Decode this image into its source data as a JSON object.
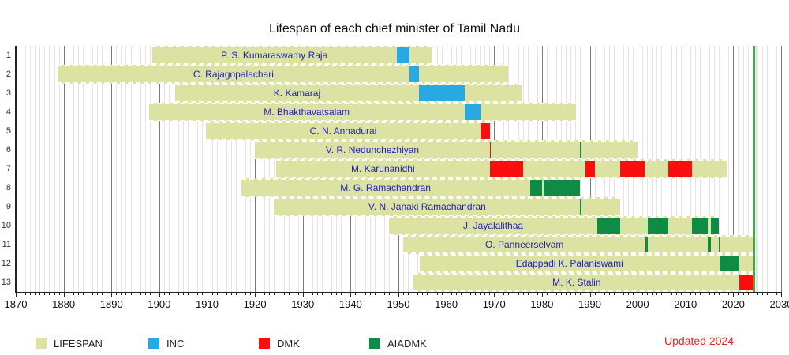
{
  "note": "Updated 2024",
  "chart_data": {
    "type": "bar",
    "variant": "lifespan-timeline",
    "title": "Lifespan of each chief minister of Tamil Nadu",
    "xlabel": "",
    "ylabel": "",
    "x_min": 1870,
    "x_max": 2030,
    "x_ticks": [
      1870,
      1880,
      1890,
      1900,
      1910,
      1920,
      1930,
      1940,
      1950,
      1960,
      1970,
      1980,
      1990,
      2000,
      2010,
      2020,
      2030
    ],
    "grid": "on",
    "now_line": 2024.2,
    "colors": {
      "LIFESPAN": "#dce2a2",
      "INC": "#29a9e1",
      "DMK": "#f90d0d",
      "AIADMK": "#0e8c46",
      "now": "#2db82d",
      "name_text": "#2222bb"
    },
    "legend": [
      {
        "party": "LIFESPAN",
        "label": "LIFESPAN"
      },
      {
        "party": "INC",
        "label": "INC"
      },
      {
        "party": "DMK",
        "label": "DMK"
      },
      {
        "party": "AIADMK",
        "label": "AIADMK"
      }
    ],
    "rows": [
      {
        "no": 1,
        "name": "P. S. Kumaraswamy Raja",
        "born": 1898.5,
        "died": 1957.0,
        "terms": [
          {
            "party": "INC",
            "start": 1949.6,
            "end": 1952.3
          }
        ]
      },
      {
        "no": 2,
        "name": "C. Rajagopalachari",
        "born": 1878.7,
        "died": 1972.9,
        "terms": [
          {
            "party": "INC",
            "start": 1952.3,
            "end": 1954.3
          }
        ]
      },
      {
        "no": 3,
        "name": "K. Kamaraj",
        "born": 1903.3,
        "died": 1975.8,
        "terms": [
          {
            "party": "INC",
            "start": 1954.3,
            "end": 1963.8
          }
        ]
      },
      {
        "no": 4,
        "name": "M. Bhakthavatsalam",
        "born": 1897.8,
        "died": 1987.1,
        "terms": [
          {
            "party": "INC",
            "start": 1963.8,
            "end": 1967.2
          }
        ]
      },
      {
        "no": 5,
        "name": "C. N. Annadurai",
        "born": 1909.7,
        "died": 1969.1,
        "terms": [
          {
            "party": "DMK",
            "start": 1967.2,
            "end": 1969.1
          }
        ]
      },
      {
        "no": 6,
        "name": "V. R. Nedunchezhiyan",
        "born": 1920.0,
        "died": 2000.0,
        "terms": [
          {
            "party": "DMK",
            "start": 1969.1,
            "end": 1969.25
          },
          {
            "party": "AIADMK",
            "start": 1987.98,
            "end": 1988.05
          }
        ]
      },
      {
        "no": 7,
        "name": "M. Karunanidhi",
        "born": 1924.4,
        "died": 2018.6,
        "terms": [
          {
            "party": "DMK",
            "start": 1969.1,
            "end": 1976.1
          },
          {
            "party": "DMK",
            "start": 1989.1,
            "end": 1991.1
          },
          {
            "party": "DMK",
            "start": 1996.4,
            "end": 2001.4
          },
          {
            "party": "DMK",
            "start": 2006.4,
            "end": 2011.4
          }
        ]
      },
      {
        "no": 8,
        "name": "M. G. Ramachandran",
        "born": 1917.1,
        "died": 1988.0,
        "terms": [
          {
            "party": "AIADMK",
            "start": 1977.5,
            "end": 1980.1
          },
          {
            "party": "AIADMK",
            "start": 1980.4,
            "end": 1988.0
          }
        ]
      },
      {
        "no": 9,
        "name": "V. N. Janaki Ramachandran",
        "born": 1924.0,
        "died": 1996.4,
        "terms": [
          {
            "party": "AIADMK",
            "start": 1988.0,
            "end": 1988.1
          }
        ]
      },
      {
        "no": 10,
        "name": "J. Jayalalithaa",
        "born": 1948.1,
        "died": 2016.9,
        "terms": [
          {
            "party": "AIADMK",
            "start": 1991.5,
            "end": 1996.4
          },
          {
            "party": "AIADMK",
            "start": 2001.4,
            "end": 2001.7
          },
          {
            "party": "AIADMK",
            "start": 2002.2,
            "end": 2006.4
          },
          {
            "party": "AIADMK",
            "start": 2011.4,
            "end": 2014.7
          },
          {
            "party": "AIADMK",
            "start": 2015.4,
            "end": 2016.9
          }
        ]
      },
      {
        "no": 11,
        "name": "O. Panneerselvam",
        "born": 1951.0,
        "died": null,
        "terms": [
          {
            "party": "AIADMK",
            "start": 2001.7,
            "end": 2002.2
          },
          {
            "party": "AIADMK",
            "start": 2014.7,
            "end": 2015.4
          },
          {
            "party": "AIADMK",
            "start": 2016.9,
            "end": 2017.1
          }
        ]
      },
      {
        "no": 12,
        "name": "Edappadi K. Palaniswami",
        "born": 1954.4,
        "died": null,
        "terms": [
          {
            "party": "AIADMK",
            "start": 2017.1,
            "end": 2021.3
          }
        ]
      },
      {
        "no": 13,
        "name": "M. K. Stalin",
        "born": 1953.2,
        "died": null,
        "terms": [
          {
            "party": "DMK",
            "start": 2021.3,
            "end": 2024.2
          }
        ]
      }
    ]
  }
}
